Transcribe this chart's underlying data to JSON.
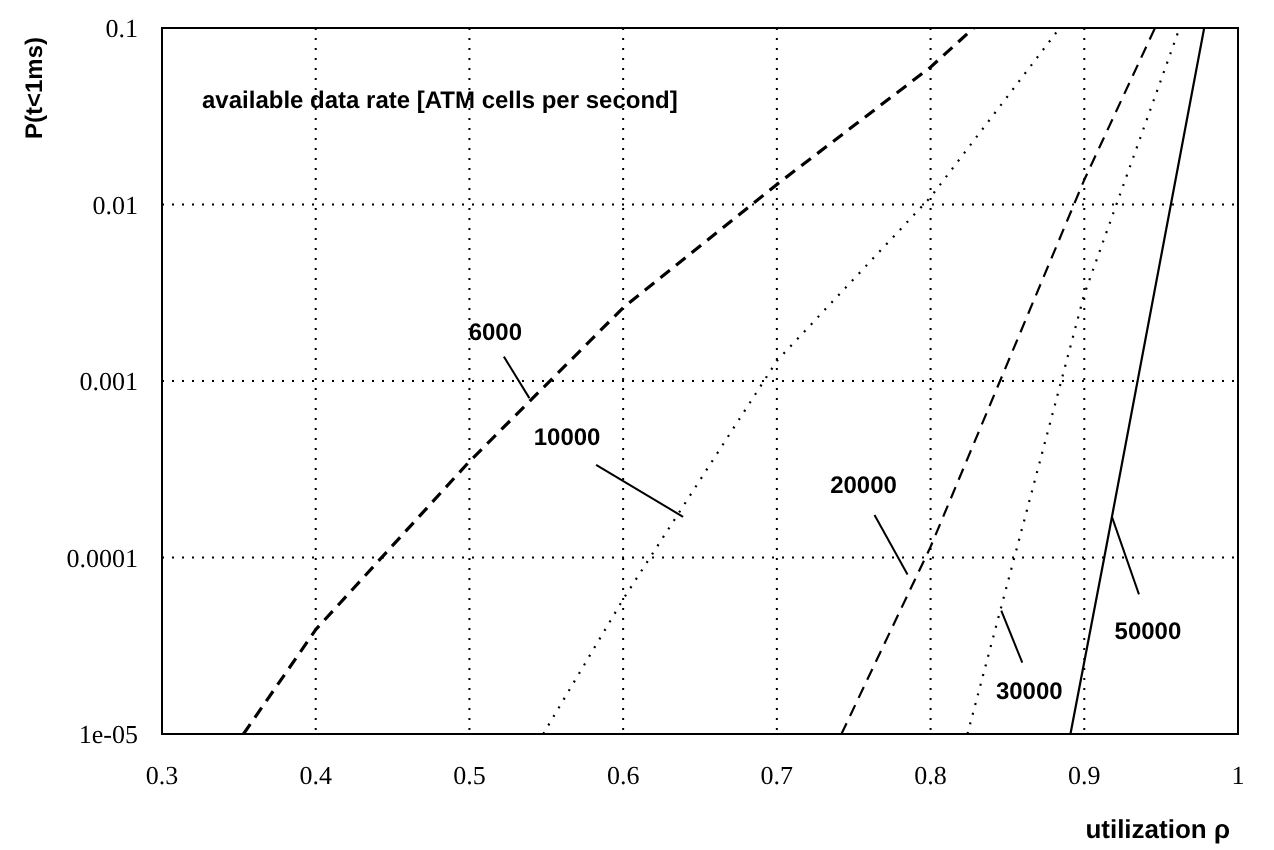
{
  "chart_data": {
    "type": "line",
    "xlabel": "utilization  ρ",
    "ylabel": "P(t<1ms)",
    "log": "y",
    "grid": true,
    "marker": "none",
    "xlim": [
      0.3,
      1
    ],
    "xticks": [
      0.3,
      0.4,
      0.5,
      0.6,
      0.7,
      0.8,
      0.9,
      1
    ],
    "ylim": [
      1e-05,
      0.1
    ],
    "yticks": [
      {
        "value": 1e-05,
        "label": "1e-05"
      },
      0.0001,
      0.001,
      0.01,
      0.1
    ],
    "series": [
      {
        "color": "#000000",
        "line_style": "dashed",
        "x": [
          0.353,
          0.4,
          0.5,
          0.6,
          0.7,
          0.8,
          0.828
        ],
        "values": [
          1e-05,
          3.9e-05,
          0.00035,
          0.0026,
          0.013,
          0.06,
          0.1
        ]
      },
      {
        "color": "#000000",
        "line_style": "dotted",
        "x": [
          0.548,
          0.6,
          0.7,
          0.8,
          0.884
        ],
        "values": [
          1e-05,
          5.8e-05,
          0.0013,
          0.011,
          0.1
        ]
      },
      {
        "color": "#000000",
        "line_style": "dashed",
        "x": [
          0.742,
          0.8,
          0.9,
          0.946
        ],
        "values": [
          1e-05,
          0.000115,
          0.0138,
          0.1
        ]
      },
      {
        "color": "#000000",
        "line_style": "dotted",
        "x": [
          0.824,
          0.9,
          0.962
        ],
        "values": [
          1e-05,
          0.0031,
          0.1
        ]
      },
      {
        "color": "#000000",
        "line_style": "solid",
        "x": [
          0.891,
          0.913,
          0.978
        ],
        "values": [
          1e-05,
          0.0001,
          0.1
        ]
      }
    ],
    "annotations": [
      "available data rate [ATM cells per second]",
      {
        "text": "6000",
        "x": 0.539,
        "y": 0.0008
      },
      {
        "text": "10000",
        "x": 0.639,
        "y": 0.00017
      },
      {
        "text": "20000",
        "x": 0.785,
        "y": 8e-05
      },
      {
        "text": "30000",
        "x": 0.846,
        "y": 5e-05
      },
      {
        "text": "50000",
        "x": 0.918,
        "y": 0.00017
      }
    ]
  }
}
